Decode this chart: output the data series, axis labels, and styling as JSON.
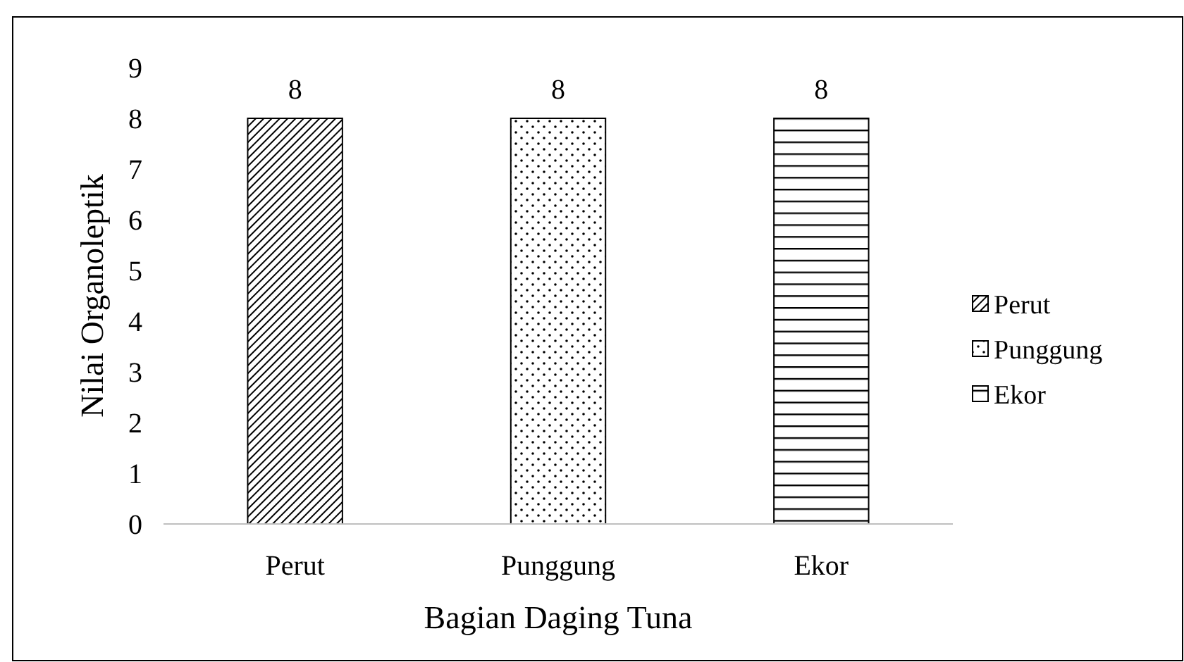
{
  "chart_data": {
    "type": "bar",
    "xlabel": "Bagian Daging Tuna",
    "ylabel": "Nilai Organoleptik",
    "categories": [
      "Perut",
      "Punggung",
      "Ekor"
    ],
    "series": [
      {
        "name": "Perut",
        "color": "#000000",
        "values": [
          8,
          null,
          null
        ]
      },
      {
        "name": "Punggung",
        "color": "#000000",
        "values": [
          null,
          8,
          null
        ]
      },
      {
        "name": "Ekor",
        "color": "#000000",
        "values": [
          null,
          null,
          8
        ]
      }
    ],
    "stacked": true,
    "ylim": [
      0,
      9
    ],
    "yticks": [
      0,
      1,
      2,
      3,
      4,
      5,
      6,
      7,
      8,
      9
    ],
    "data_labels": true,
    "legend": "right",
    "grid": false
  }
}
